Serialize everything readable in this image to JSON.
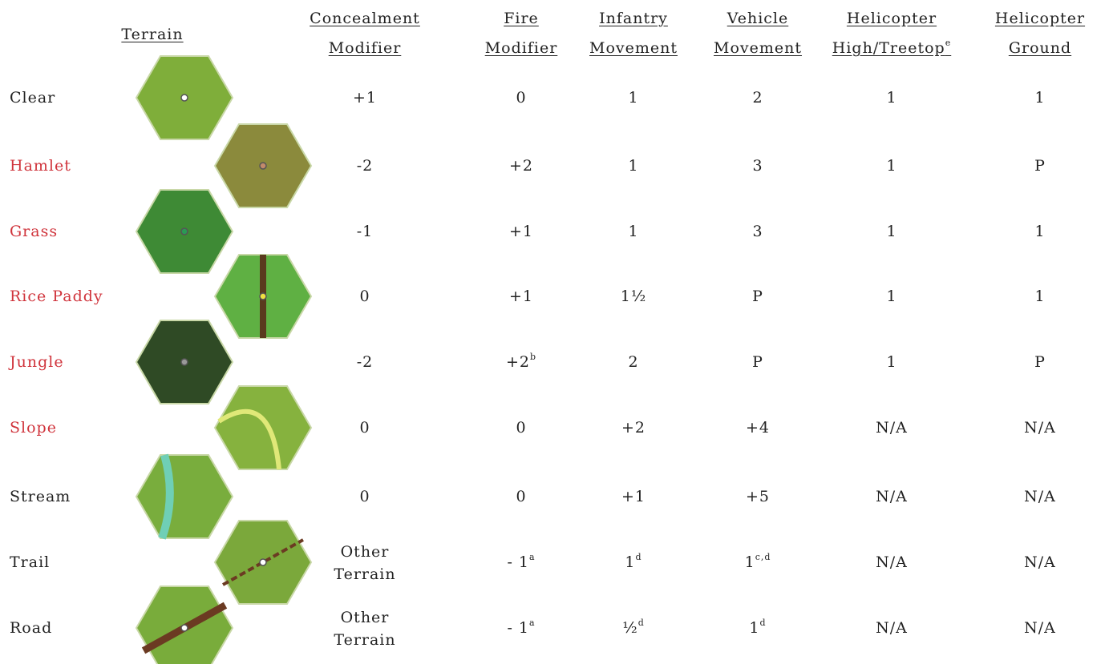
{
  "header": {
    "terrain": "Terrain",
    "columns": [
      {
        "lines": [
          "Concealment",
          "Modifier"
        ]
      },
      {
        "lines": [
          "Fire",
          "Modifier"
        ]
      },
      {
        "lines": [
          "Infantry",
          "Movement"
        ]
      },
      {
        "lines": [
          "Vehicle",
          "Movement"
        ]
      },
      {
        "lines": [
          "Helicopter",
          "High/Treetop"
        ],
        "sup": "e"
      },
      {
        "lines": [
          "Helicopter",
          "Ground"
        ]
      }
    ]
  },
  "table": {
    "rows": [
      {
        "name": "Clear",
        "color": "#222222",
        "cells": [
          "+1",
          "0",
          "1",
          "2",
          "1",
          "1"
        ]
      },
      {
        "name": "Hamlet",
        "color": "#d0343c",
        "cells": [
          "-2",
          "+2",
          "1",
          "3",
          "1",
          "P"
        ]
      },
      {
        "name": "Grass",
        "color": "#d0343c",
        "cells": [
          "-1",
          "+1",
          "1",
          "3",
          "1",
          "1"
        ]
      },
      {
        "name": "Rice Paddy",
        "color": "#d0343c",
        "cells": [
          "0",
          "+1",
          "1½",
          "P",
          "1",
          "1"
        ]
      },
      {
        "name": "Jungle",
        "color": "#d0343c",
        "cells": [
          "-2",
          {
            "text": "+2",
            "sup": "b"
          },
          "2",
          "P",
          "1",
          "P"
        ]
      },
      {
        "name": "Slope",
        "color": "#d0343c",
        "cells": [
          "0",
          "0",
          "+2",
          "+4",
          "N/A",
          "N/A"
        ]
      },
      {
        "name": "Stream",
        "color": "#222222",
        "cells": [
          "0",
          "0",
          "+1",
          "+5",
          "N/A",
          "N/A"
        ]
      },
      {
        "name": "Trail",
        "color": "#222222",
        "cells": [
          {
            "lines": [
              "Other",
              "Terrain"
            ]
          },
          {
            "text": "- 1",
            "sup": "a"
          },
          {
            "text": "1",
            "sup": "d"
          },
          {
            "text": "1",
            "sup": "c,d"
          },
          "N/A",
          "N/A"
        ]
      },
      {
        "name": "Road",
        "color": "#222222",
        "cells": [
          {
            "lines": [
              "Other",
              "Terrain"
            ]
          },
          {
            "text": "- 1",
            "sup": "a"
          },
          {
            "text": "½",
            "sup": "d"
          },
          {
            "text": "1",
            "sup": "d"
          },
          "N/A",
          "N/A"
        ]
      }
    ]
  }
}
